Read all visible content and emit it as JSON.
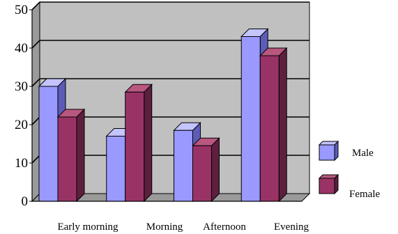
{
  "chart_data": {
    "type": "bar",
    "style": "3d-clustered",
    "categories": [
      "Early morning",
      "Morning",
      "Afternoon",
      "Evening"
    ],
    "series": [
      {
        "name": "Male",
        "values": [
          30,
          17,
          18.5,
          43
        ]
      },
      {
        "name": "Female",
        "values": [
          22,
          28.5,
          14.5,
          38
        ]
      }
    ],
    "ylim": [
      0,
      50
    ],
    "yticks": [
      "0",
      "10",
      "20",
      "30",
      "40",
      "50"
    ],
    "grid": true,
    "legend_position": "right",
    "title": "",
    "xlabel": "",
    "ylabel": ""
  },
  "colors": {
    "male": "#9999ff",
    "male_side": "#5c5cb8",
    "male_top": "#c4c4ff",
    "female": "#993366",
    "female_side": "#5e1f3f",
    "female_top": "#b8577f",
    "plot_back": "#c0c0c0",
    "plot_floor": "#9a9a9a",
    "gridline": "#000000"
  }
}
